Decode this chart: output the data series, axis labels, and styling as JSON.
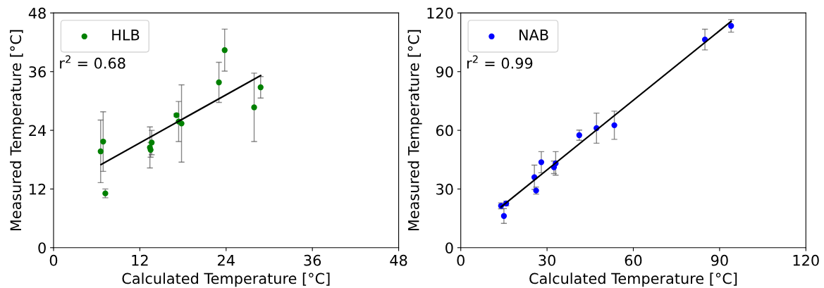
{
  "chart_data": [
    {
      "type": "scatter",
      "xlabel": "Calculated Temperature [°C]",
      "ylabel": "Measured Temperature [°C]",
      "xlim": [
        0,
        48
      ],
      "ylim": [
        0,
        48
      ],
      "xticks": [
        0,
        12,
        24,
        36,
        48
      ],
      "yticks": [
        0,
        12,
        24,
        36,
        48
      ],
      "legend": "top left",
      "grid": false,
      "annotations": [
        "r$^{2}$ = 0.68"
      ],
      "series": [
        {
          "name": "HLB",
          "type": "scatter",
          "marker": "circle",
          "color": "#008000",
          "x": [
            6.55,
            6.9,
            7.2,
            13.4,
            13.5,
            13.65,
            17.1,
            17.4,
            17.8,
            23.0,
            23.8,
            27.9,
            28.8
          ],
          "values": [
            19.7,
            21.7,
            11.1,
            20.5,
            20.0,
            21.5,
            27.1,
            25.8,
            25.4,
            33.8,
            40.4,
            28.7,
            32.8
          ],
          "errors": [
            6.4,
            6.1,
            0.9,
            4.2,
            1.5,
            2.5,
            0.3,
            4.1,
            7.9,
            4.1,
            4.3,
            7.0,
            2.2
          ]
        },
        {
          "type": "line",
          "color": "#000000",
          "x": [
            6.6,
            28.8
          ],
          "values": [
            17.0,
            35.2
          ]
        }
      ]
    },
    {
      "type": "scatter",
      "xlabel": "Calculated Temperature [°C]",
      "ylabel": "Measured Temperature [°C]",
      "xlim": [
        0,
        120
      ],
      "ylim": [
        0,
        120
      ],
      "xticks": [
        0,
        30,
        60,
        90,
        120
      ],
      "yticks": [
        0,
        30,
        60,
        90,
        120
      ],
      "legend": "top left",
      "grid": false,
      "annotations": [
        "r$^{2}$ = 0.99"
      ],
      "series": [
        {
          "name": "NAB",
          "type": "scatter",
          "marker": "circle",
          "color": "#0000ff",
          "x": [
            14.0,
            15.0,
            15.8,
            25.6,
            26.2,
            28.0,
            32.4,
            33.0,
            41.2,
            47.2,
            53.4,
            84.9,
            94.0
          ],
          "values": [
            21.4,
            16.2,
            22.6,
            36.0,
            29.2,
            43.7,
            41.1,
            43.1,
            57.5,
            61.1,
            62.6,
            106.4,
            113.4
          ],
          "errors": [
            1.5,
            3.8,
            1.2,
            6.2,
            1.8,
            5.4,
            3.2,
            6.0,
            2.6,
            7.7,
            7.2,
            5.3,
            3.2
          ]
        },
        {
          "type": "line",
          "color": "#000000",
          "x": [
            14.0,
            94.0
          ],
          "values": [
            20.8,
            115.7
          ]
        }
      ]
    }
  ]
}
